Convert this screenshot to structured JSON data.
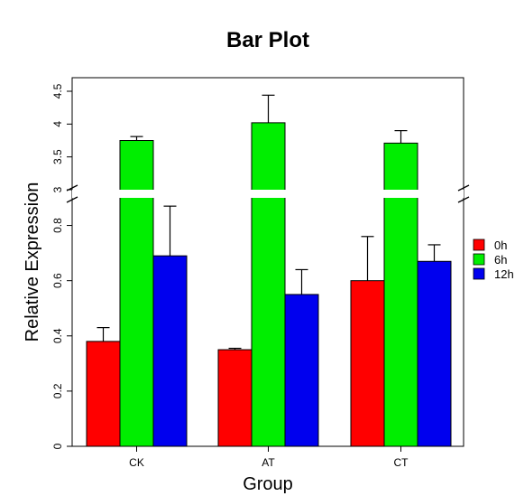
{
  "chart_data": {
    "type": "bar",
    "title": "Bar Plot",
    "xlabel": "Group",
    "ylabel": "Relative Expression",
    "categories": [
      "CK",
      "AT",
      "CT"
    ],
    "series": [
      {
        "name": "0h",
        "color": "#ff0000",
        "values": [
          0.38,
          0.35,
          0.6
        ],
        "errors": [
          0.05,
          0.005,
          0.16
        ]
      },
      {
        "name": "6h",
        "color": "#00ee00",
        "values": [
          3.75,
          4.02,
          3.71
        ],
        "errors": [
          0.06,
          0.42,
          0.19
        ]
      },
      {
        "name": "12h",
        "color": "#0000ee",
        "values": [
          0.69,
          0.55,
          0.67
        ],
        "errors": [
          0.18,
          0.09,
          0.06
        ]
      }
    ],
    "y_axis_break": {
      "from": 0.9,
      "to": 3.0
    },
    "y_lower_ticks": [
      "0",
      "0.2",
      "0.4",
      "0.6",
      "0.8"
    ],
    "y_upper_ticks": [
      "3",
      "3.5",
      "4",
      "4.5"
    ],
    "legend_position": "right",
    "grid": false
  }
}
